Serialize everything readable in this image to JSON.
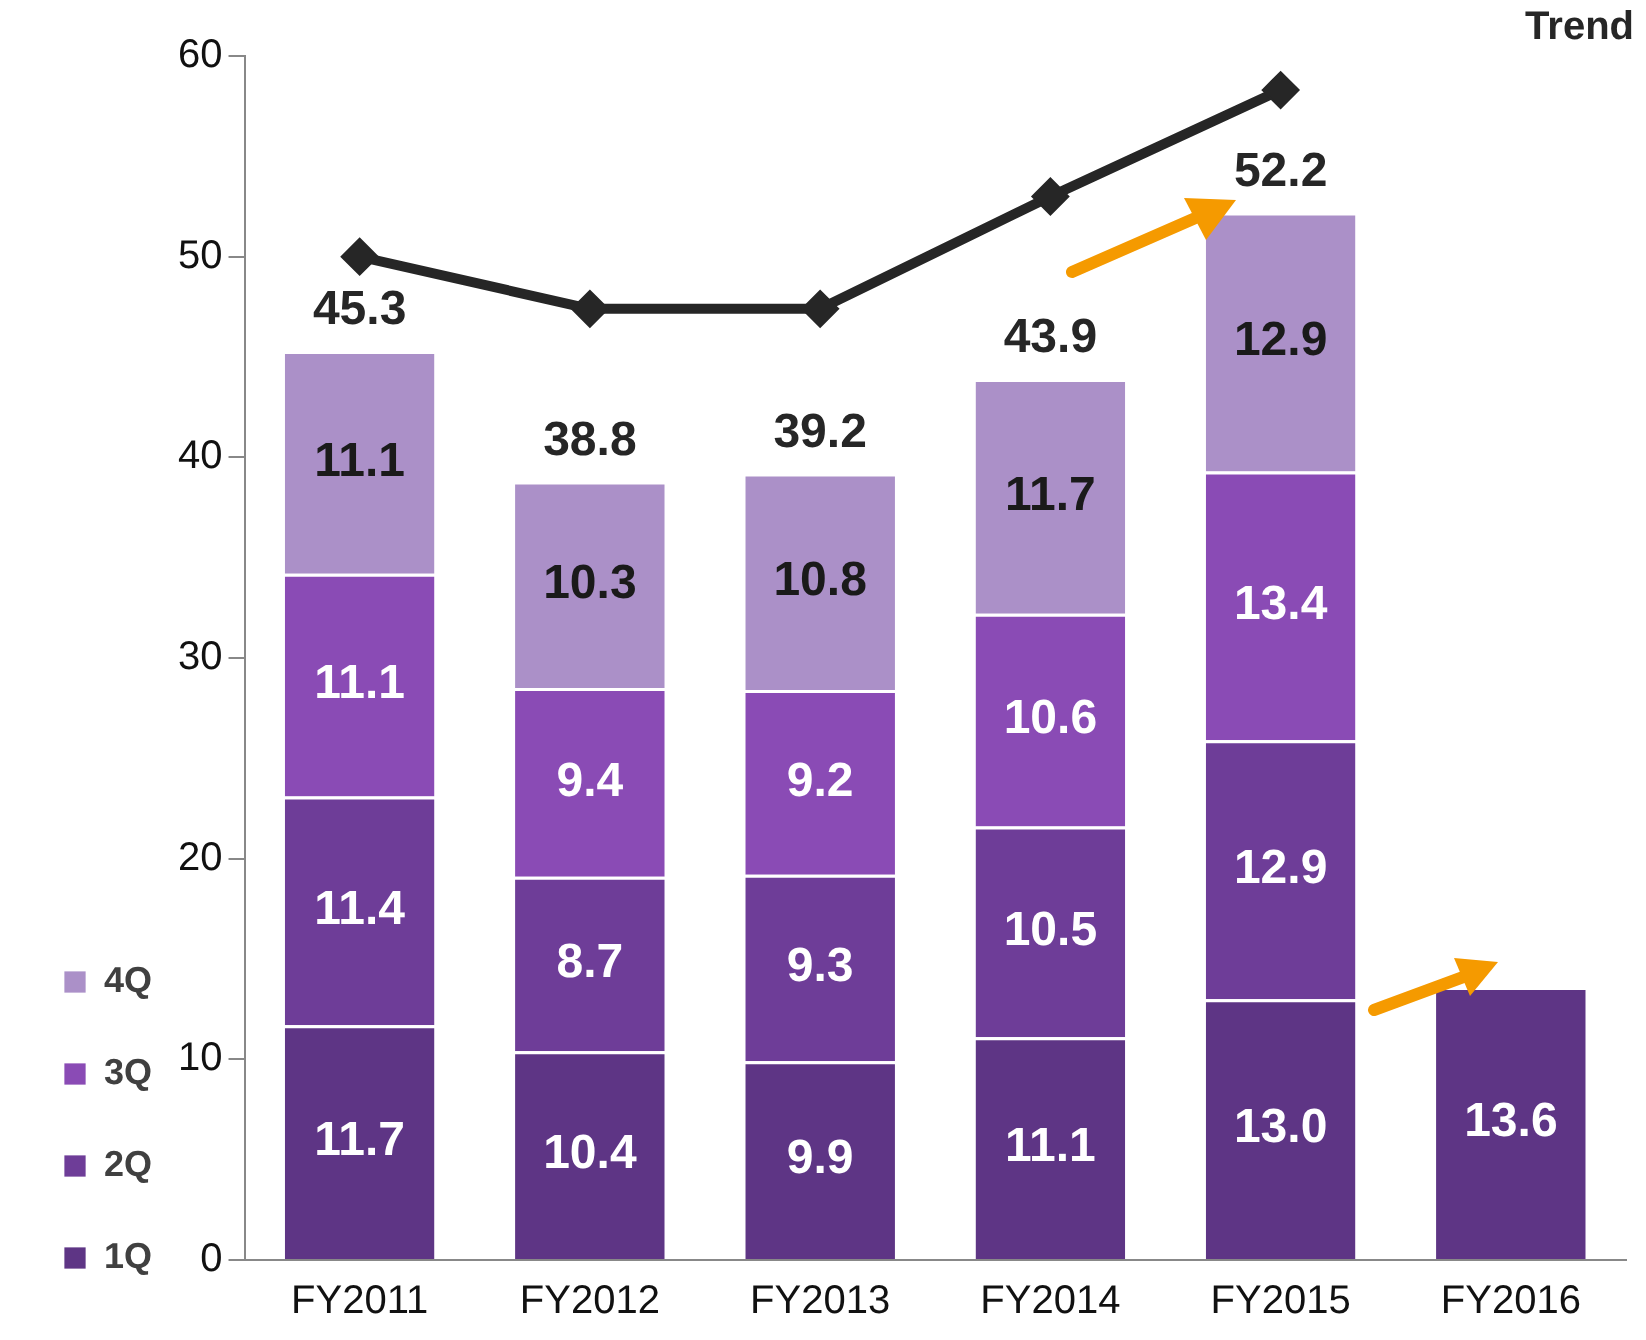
{
  "chart_data": {
    "type": "bar",
    "stacked": true,
    "categories": [
      "FY2011",
      "FY2012",
      "FY2013",
      "FY2014",
      "FY2015",
      "FY2016"
    ],
    "series": [
      {
        "name": "1Q",
        "color": "#5e3585",
        "values": [
          11.7,
          10.4,
          9.9,
          11.1,
          13.0,
          13.6
        ],
        "value_labels": [
          "11.7",
          "10.4",
          "9.9",
          "11.1",
          "13.0",
          "13.6"
        ]
      },
      {
        "name": "2Q",
        "color": "#6e3d98",
        "values": [
          11.4,
          8.7,
          9.3,
          10.5,
          12.9,
          null
        ],
        "value_labels": [
          "11.4",
          "8.7",
          "9.3",
          "10.5",
          "12.9",
          null
        ]
      },
      {
        "name": "3Q",
        "color": "#8a4bb5",
        "values": [
          11.1,
          9.4,
          9.2,
          10.6,
          13.4,
          null
        ],
        "value_labels": [
          "11.1",
          "9.4",
          "9.2",
          "10.6",
          "13.4",
          null
        ]
      },
      {
        "name": "4Q",
        "color": "#ab90c8",
        "values": [
          11.1,
          10.3,
          10.8,
          11.7,
          12.9,
          null
        ],
        "value_labels": [
          "11.1",
          "10.3",
          "10.8",
          "11.7",
          "12.9",
          null
        ]
      },
      {
        "type": "line",
        "color": "#262626",
        "marker": "diamond",
        "line_style": "solid",
        "values": [
          50,
          47.4,
          47.4,
          53,
          58.3,
          null
        ]
      }
    ],
    "totals": [
      "45.3",
      "38.8",
      "39.2",
      "43.9",
      "52.2",
      null
    ],
    "ylim": [
      0,
      60
    ],
    "yticks": [
      0,
      10,
      20,
      30,
      40,
      50,
      60
    ],
    "grid": false,
    "legend": "bottom left",
    "annotations": [
      "Trend"
    ]
  }
}
